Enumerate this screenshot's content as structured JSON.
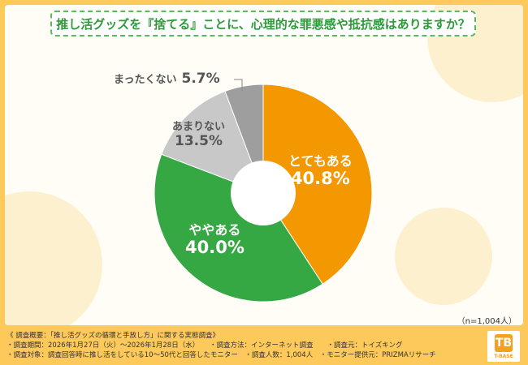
{
  "title": "推し活グッズを『捨てる』ことに、心理的な罪悪感や抵抗感はありますか？",
  "chart_data": {
    "type": "pie",
    "donut": true,
    "start": "top-clockwise",
    "categories": [
      "とてもある",
      "ややある",
      "あまりない",
      "まったくない"
    ],
    "values": [
      40.8,
      40.0,
      13.5,
      5.7
    ],
    "value_labels": [
      "40.8%",
      "40.0%",
      "13.5%",
      "5.7%"
    ],
    "colors": [
      "#f39800",
      "#35a843",
      "#c8c8c8",
      "#9e9e9e"
    ]
  },
  "sample": "（n=1,004人）",
  "footer": [
    "《 調査概要：「推し活グッズの循環と手放し方」に関する実態調査》",
    "・調査期間：2026年1月27日（火）～2026年1月28日（水）　　・調査方法：インターネット調査　　・調査元：トイズキング",
    "・調査対象：調査回答時に推し活をしている10～50代と回答したモニター　・調査人数：1,004人　・モニター提供元：PRIZMAリサーチ"
  ],
  "logo": {
    "mark": "TB",
    "text": "T-BASE"
  }
}
